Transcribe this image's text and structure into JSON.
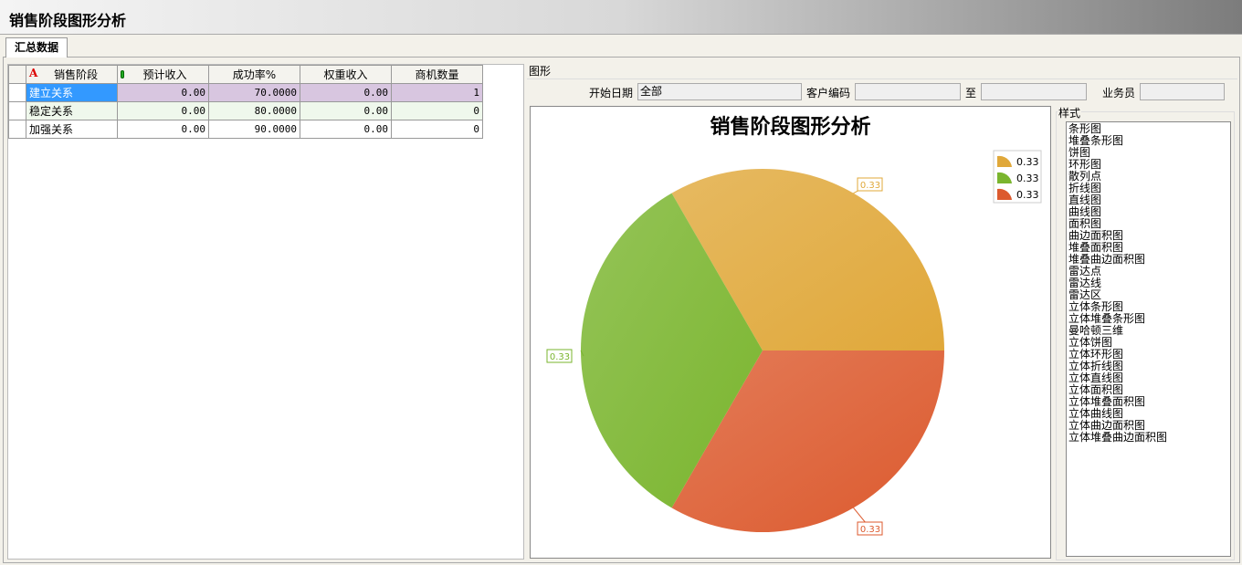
{
  "window": {
    "title": "销售阶段图形分析"
  },
  "tabs": [
    {
      "label": "汇总数据"
    }
  ],
  "grid": {
    "columns": [
      "销售阶段",
      "预计收入",
      "成功率%",
      "权重收入",
      "商机数量"
    ],
    "rows": [
      [
        "建立关系",
        "0.00",
        "70.0000",
        "0.00",
        "1"
      ],
      [
        "稳定关系",
        "0.00",
        "80.0000",
        "0.00",
        "0"
      ],
      [
        "加强关系",
        "0.00",
        "90.0000",
        "0.00",
        "0"
      ]
    ]
  },
  "panel": {
    "title": "图形",
    "start_date_label": "开始日期",
    "start_date_value": "全部",
    "customer_code_label": "客户编码",
    "customer_code_value": "",
    "to_label": "至",
    "to_value": "",
    "salesman_label": "业务员",
    "salesman_value": ""
  },
  "style": {
    "label": "样式",
    "options": [
      "条形图",
      "堆叠条形图",
      "饼图",
      "环形图",
      "散列点",
      "折线图",
      "直线图",
      "曲线图",
      "面积图",
      "曲边面积图",
      "堆叠面积图",
      "堆叠曲边面积图",
      "雷达点",
      "雷达线",
      "雷达区",
      "立体条形图",
      "立体堆叠条形图",
      "曼哈顿三维",
      "立体饼图",
      "立体环形图",
      "立体折线图",
      "立体直线图",
      "立体面积图",
      "立体堆叠面积图",
      "立体曲线图",
      "立体曲边面积图",
      "立体堆叠曲边面积图"
    ]
  },
  "chart_data": {
    "type": "pie",
    "title": "销售阶段图形分析",
    "slices": [
      {
        "label": "0.33",
        "value": 0.33,
        "color": "#e0a83a"
      },
      {
        "label": "0.33",
        "value": 0.33,
        "color": "#7ab52e"
      },
      {
        "label": "0.33",
        "value": 0.33,
        "color": "#dc5a2e"
      }
    ],
    "legend": [
      "0.33",
      "0.33",
      "0.33"
    ],
    "legend_placement": "top-right"
  }
}
